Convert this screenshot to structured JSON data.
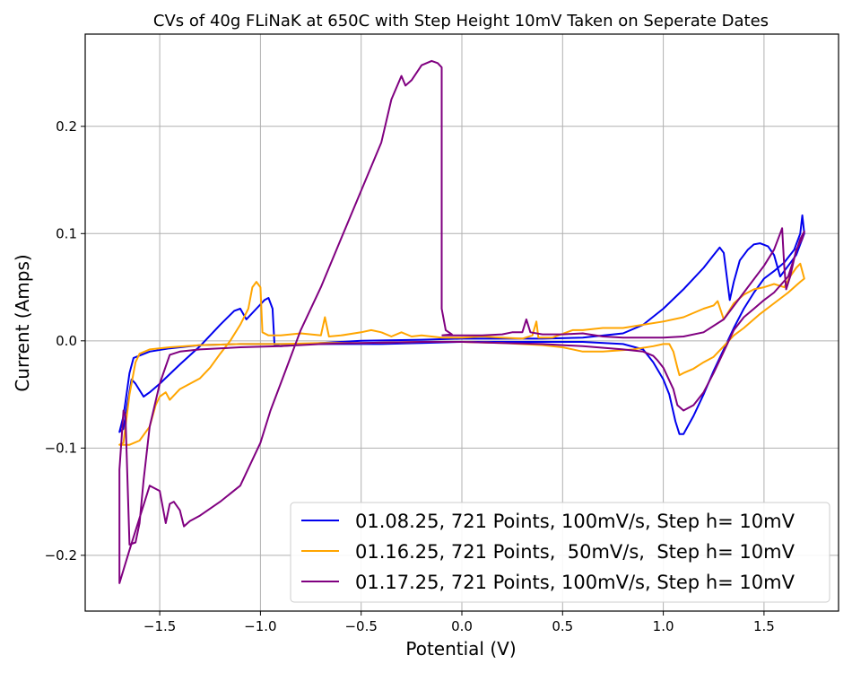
{
  "chart_data": {
    "type": "line",
    "title": "CVs of 40g FLiNaK at 650C with Step Height 10mV Taken on Seperate Dates",
    "xlabel": "Potential (V)",
    "ylabel": "Current (Amps)",
    "xlim": [
      -1.87,
      1.87
    ],
    "ylim": [
      -0.252,
      0.286
    ],
    "xticks": [
      -1.5,
      -1.0,
      -0.5,
      0.0,
      0.5,
      1.0,
      1.5
    ],
    "xtick_labels": [
      "−1.5",
      "−1.0",
      "−0.5",
      "0.0",
      "0.5",
      "1.0",
      "1.5"
    ],
    "yticks": [
      -0.2,
      -0.1,
      0.0,
      0.1,
      0.2
    ],
    "ytick_labels": [
      "−0.2",
      "−0.1",
      "0.0",
      "0.1",
      "0.2"
    ],
    "grid": true,
    "legend_position": "lower-right",
    "series": [
      {
        "name": "01.08.25, 721 Points, 100mV/s, Step h= 10mV",
        "color": "#0000ee",
        "points": [
          [
            -0.4,
            -0.003
          ],
          [
            -0.2,
            -0.002
          ],
          [
            0.0,
            -0.001
          ],
          [
            0.2,
            -0.001
          ],
          [
            0.4,
            -0.001
          ],
          [
            0.6,
            -0.001
          ],
          [
            0.8,
            -0.003
          ],
          [
            0.9,
            -0.008
          ],
          [
            0.95,
            -0.02
          ],
          [
            1.0,
            -0.036
          ],
          [
            1.03,
            -0.05
          ],
          [
            1.06,
            -0.075
          ],
          [
            1.08,
            -0.087
          ],
          [
            1.1,
            -0.087
          ],
          [
            1.15,
            -0.07
          ],
          [
            1.2,
            -0.05
          ],
          [
            1.25,
            -0.028
          ],
          [
            1.3,
            -0.008
          ],
          [
            1.35,
            0.012
          ],
          [
            1.4,
            0.03
          ],
          [
            1.45,
            0.045
          ],
          [
            1.5,
            0.058
          ],
          [
            1.55,
            0.065
          ],
          [
            1.6,
            0.073
          ],
          [
            1.65,
            0.085
          ],
          [
            1.68,
            0.1
          ],
          [
            1.69,
            0.117
          ],
          [
            1.7,
            0.1
          ],
          [
            1.66,
            0.08
          ],
          [
            1.62,
            0.07
          ],
          [
            1.58,
            0.06
          ],
          [
            1.55,
            0.08
          ],
          [
            1.52,
            0.088
          ],
          [
            1.48,
            0.091
          ],
          [
            1.45,
            0.09
          ],
          [
            1.42,
            0.085
          ],
          [
            1.38,
            0.075
          ],
          [
            1.35,
            0.055
          ],
          [
            1.33,
            0.038
          ],
          [
            1.3,
            0.082
          ],
          [
            1.28,
            0.087
          ],
          [
            1.25,
            0.08
          ],
          [
            1.2,
            0.068
          ],
          [
            1.1,
            0.048
          ],
          [
            1.0,
            0.03
          ],
          [
            0.9,
            0.015
          ],
          [
            0.8,
            0.007
          ],
          [
            0.6,
            0.003
          ],
          [
            0.4,
            0.002
          ],
          [
            0.2,
            0.002
          ],
          [
            0.0,
            0.002
          ],
          [
            -0.2,
            0.001
          ],
          [
            -0.5,
            0.0
          ],
          [
            -0.7,
            -0.002
          ],
          [
            -0.9,
            -0.005
          ],
          [
            -0.93,
            -0.004
          ],
          [
            -0.94,
            0.03
          ],
          [
            -0.96,
            0.04
          ],
          [
            -0.98,
            0.038
          ],
          [
            -1.02,
            0.03
          ],
          [
            -1.07,
            0.02
          ],
          [
            -1.1,
            0.03
          ],
          [
            -1.13,
            0.028
          ],
          [
            -1.2,
            0.015
          ],
          [
            -1.3,
            -0.005
          ],
          [
            -1.4,
            -0.022
          ],
          [
            -1.5,
            -0.04
          ],
          [
            -1.55,
            -0.048
          ],
          [
            -1.58,
            -0.052
          ],
          [
            -1.62,
            -0.04
          ],
          [
            -1.64,
            -0.036
          ],
          [
            -1.66,
            -0.058
          ],
          [
            -1.68,
            -0.082
          ],
          [
            -1.7,
            -0.085
          ],
          [
            -1.68,
            -0.07
          ],
          [
            -1.65,
            -0.03
          ],
          [
            -1.63,
            -0.016
          ],
          [
            -1.55,
            -0.01
          ],
          [
            -1.45,
            -0.007
          ],
          [
            -1.3,
            -0.004
          ],
          [
            -1.1,
            -0.003
          ],
          [
            -0.9,
            -0.003
          ],
          [
            -0.7,
            -0.003
          ],
          [
            -0.5,
            -0.003
          ],
          [
            -0.4,
            -0.003
          ]
        ]
      },
      {
        "name": "01.16.25, 721 Points,  50mV/s,  Step h= 10mV",
        "color": "#ffa500",
        "points": [
          [
            -0.4,
            0.008
          ],
          [
            -0.35,
            0.004
          ],
          [
            -0.3,
            0.008
          ],
          [
            -0.25,
            0.004
          ],
          [
            -0.2,
            0.005
          ],
          [
            -0.1,
            0.003
          ],
          [
            0.0,
            0.003
          ],
          [
            0.1,
            0.004
          ],
          [
            0.2,
            0.003
          ],
          [
            0.3,
            0.002
          ],
          [
            0.35,
            0.005
          ],
          [
            0.37,
            0.018
          ],
          [
            0.38,
            0.003
          ],
          [
            0.45,
            0.003
          ],
          [
            0.55,
            0.01
          ],
          [
            0.6,
            0.01
          ],
          [
            0.7,
            0.012
          ],
          [
            0.8,
            0.012
          ],
          [
            0.9,
            0.015
          ],
          [
            1.0,
            0.018
          ],
          [
            1.1,
            0.022
          ],
          [
            1.2,
            0.03
          ],
          [
            1.25,
            0.033
          ],
          [
            1.27,
            0.037
          ],
          [
            1.3,
            0.02
          ],
          [
            1.35,
            0.035
          ],
          [
            1.4,
            0.043
          ],
          [
            1.45,
            0.048
          ],
          [
            1.5,
            0.05
          ],
          [
            1.55,
            0.053
          ],
          [
            1.6,
            0.05
          ],
          [
            1.63,
            0.06
          ],
          [
            1.66,
            0.068
          ],
          [
            1.68,
            0.072
          ],
          [
            1.7,
            0.058
          ],
          [
            1.68,
            0.055
          ],
          [
            1.62,
            0.045
          ],
          [
            1.55,
            0.035
          ],
          [
            1.48,
            0.025
          ],
          [
            1.4,
            0.012
          ],
          [
            1.35,
            0.005
          ],
          [
            1.3,
            -0.005
          ],
          [
            1.25,
            -0.015
          ],
          [
            1.2,
            -0.02
          ],
          [
            1.15,
            -0.026
          ],
          [
            1.1,
            -0.03
          ],
          [
            1.08,
            -0.032
          ],
          [
            1.07,
            -0.025
          ],
          [
            1.05,
            -0.01
          ],
          [
            1.03,
            -0.003
          ],
          [
            1.0,
            -0.003
          ],
          [
            0.95,
            -0.005
          ],
          [
            0.85,
            -0.008
          ],
          [
            0.7,
            -0.01
          ],
          [
            0.6,
            -0.01
          ],
          [
            0.5,
            -0.006
          ],
          [
            0.4,
            -0.004
          ],
          [
            0.2,
            -0.002
          ],
          [
            0.0,
            -0.001
          ],
          [
            -0.2,
            -0.001
          ],
          [
            -0.5,
            -0.002
          ],
          [
            -0.7,
            -0.002
          ],
          [
            -0.9,
            -0.003
          ],
          [
            -1.1,
            -0.003
          ],
          [
            -1.3,
            -0.004
          ],
          [
            -1.45,
            -0.006
          ],
          [
            -1.55,
            -0.008
          ],
          [
            -1.6,
            -0.012
          ],
          [
            -1.62,
            -0.02
          ],
          [
            -1.65,
            -0.05
          ],
          [
            -1.67,
            -0.08
          ],
          [
            -1.68,
            -0.095
          ],
          [
            -1.7,
            -0.097
          ],
          [
            -1.65,
            -0.097
          ],
          [
            -1.6,
            -0.093
          ],
          [
            -1.55,
            -0.08
          ],
          [
            -1.52,
            -0.06
          ],
          [
            -1.5,
            -0.052
          ],
          [
            -1.47,
            -0.048
          ],
          [
            -1.45,
            -0.055
          ],
          [
            -1.4,
            -0.045
          ],
          [
            -1.3,
            -0.035
          ],
          [
            -1.25,
            -0.025
          ],
          [
            -1.2,
            -0.012
          ],
          [
            -1.15,
            0.0
          ],
          [
            -1.1,
            0.015
          ],
          [
            -1.06,
            0.03
          ],
          [
            -1.04,
            0.05
          ],
          [
            -1.02,
            0.055
          ],
          [
            -1.0,
            0.05
          ],
          [
            -0.99,
            0.008
          ],
          [
            -0.96,
            0.005
          ],
          [
            -0.9,
            0.005
          ],
          [
            -0.8,
            0.007
          ],
          [
            -0.7,
            0.005
          ],
          [
            -0.68,
            0.022
          ],
          [
            -0.66,
            0.004
          ],
          [
            -0.6,
            0.005
          ],
          [
            -0.5,
            0.008
          ],
          [
            -0.45,
            0.01
          ],
          [
            -0.4,
            0.008
          ]
        ]
      },
      {
        "name": "01.17.25, 721 Points, 100mV/s, Step h= 10mV",
        "color": "#800080",
        "points": [
          [
            -0.1,
            0.005
          ],
          [
            0.0,
            0.005
          ],
          [
            0.1,
            0.005
          ],
          [
            0.2,
            0.006
          ],
          [
            0.25,
            0.008
          ],
          [
            0.3,
            0.008
          ],
          [
            0.32,
            0.02
          ],
          [
            0.34,
            0.008
          ],
          [
            0.4,
            0.006
          ],
          [
            0.5,
            0.006
          ],
          [
            0.6,
            0.007
          ],
          [
            0.7,
            0.004
          ],
          [
            0.8,
            0.003
          ],
          [
            0.9,
            0.003
          ],
          [
            1.0,
            0.003
          ],
          [
            1.1,
            0.004
          ],
          [
            1.2,
            0.008
          ],
          [
            1.3,
            0.02
          ],
          [
            1.4,
            0.045
          ],
          [
            1.5,
            0.07
          ],
          [
            1.55,
            0.085
          ],
          [
            1.58,
            0.1
          ],
          [
            1.59,
            0.105
          ],
          [
            1.6,
            0.07
          ],
          [
            1.61,
            0.048
          ],
          [
            1.63,
            0.06
          ],
          [
            1.66,
            0.085
          ],
          [
            1.69,
            0.095
          ],
          [
            1.7,
            0.102
          ],
          [
            1.68,
            0.095
          ],
          [
            1.62,
            0.06
          ],
          [
            1.55,
            0.045
          ],
          [
            1.5,
            0.038
          ],
          [
            1.45,
            0.03
          ],
          [
            1.4,
            0.022
          ],
          [
            1.35,
            0.01
          ],
          [
            1.3,
            -0.01
          ],
          [
            1.25,
            -0.03
          ],
          [
            1.2,
            -0.048
          ],
          [
            1.15,
            -0.06
          ],
          [
            1.1,
            -0.065
          ],
          [
            1.07,
            -0.06
          ],
          [
            1.05,
            -0.045
          ],
          [
            1.0,
            -0.025
          ],
          [
            0.97,
            -0.018
          ],
          [
            0.95,
            -0.014
          ],
          [
            0.9,
            -0.01
          ],
          [
            0.8,
            -0.008
          ],
          [
            0.6,
            -0.005
          ],
          [
            0.4,
            -0.003
          ],
          [
            0.2,
            -0.002
          ],
          [
            0.0,
            -0.001
          ],
          [
            -0.2,
            -0.001
          ],
          [
            -0.5,
            -0.002
          ],
          [
            -0.7,
            -0.003
          ],
          [
            -0.9,
            -0.005
          ],
          [
            -1.1,
            -0.006
          ],
          [
            -1.3,
            -0.008
          ],
          [
            -1.4,
            -0.01
          ],
          [
            -1.45,
            -0.013
          ],
          [
            -1.5,
            -0.04
          ],
          [
            -1.55,
            -0.08
          ],
          [
            -1.58,
            -0.13
          ],
          [
            -1.6,
            -0.17
          ],
          [
            -1.62,
            -0.188
          ],
          [
            -1.65,
            -0.19
          ],
          [
            -1.67,
            -0.07
          ],
          [
            -1.68,
            -0.065
          ],
          [
            -1.7,
            -0.12
          ],
          [
            -1.7,
            -0.226
          ],
          [
            -1.65,
            -0.195
          ],
          [
            -1.55,
            -0.135
          ],
          [
            -1.5,
            -0.14
          ],
          [
            -1.47,
            -0.17
          ],
          [
            -1.45,
            -0.152
          ],
          [
            -1.43,
            -0.15
          ],
          [
            -1.4,
            -0.158
          ],
          [
            -1.38,
            -0.173
          ],
          [
            -1.35,
            -0.168
          ],
          [
            -1.3,
            -0.163
          ],
          [
            -1.2,
            -0.15
          ],
          [
            -1.1,
            -0.135
          ],
          [
            -1.0,
            -0.095
          ],
          [
            -0.95,
            -0.065
          ],
          [
            -0.9,
            -0.04
          ],
          [
            -0.8,
            0.01
          ],
          [
            -0.7,
            0.05
          ],
          [
            -0.6,
            0.095
          ],
          [
            -0.5,
            0.14
          ],
          [
            -0.4,
            0.185
          ],
          [
            -0.35,
            0.225
          ],
          [
            -0.3,
            0.247
          ],
          [
            -0.28,
            0.238
          ],
          [
            -0.25,
            0.243
          ],
          [
            -0.2,
            0.257
          ],
          [
            -0.15,
            0.261
          ],
          [
            -0.12,
            0.259
          ],
          [
            -0.1,
            0.255
          ],
          [
            -0.1,
            0.03
          ],
          [
            -0.08,
            0.01
          ],
          [
            -0.05,
            0.006
          ],
          [
            -0.1,
            0.005
          ]
        ]
      }
    ]
  }
}
